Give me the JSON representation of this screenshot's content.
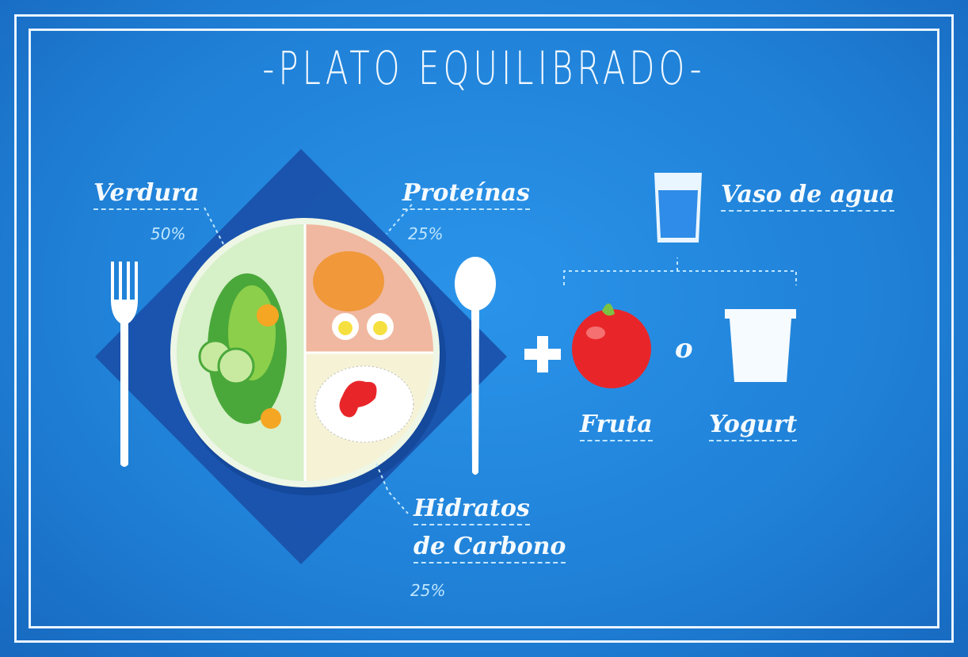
{
  "title": "-PLATO EQUILIBRADO-",
  "plate": {
    "sections": [
      {
        "name": "Verdura",
        "percent": "50%"
      },
      {
        "name": "Proteínas",
        "percent": "25%"
      },
      {
        "name": "Hidratos de Carbono",
        "line1": "Hidratos",
        "line2": "de Carbono",
        "percent": "25%"
      }
    ]
  },
  "extras": {
    "water": "Vaso de agua",
    "fruit": "Fruta",
    "or": "o",
    "yogurt": "Yogurt",
    "plus": "+"
  },
  "colors": {
    "background": "#1f86dc",
    "napkin": "#1a4fa8",
    "verdura": "#d6f0c8",
    "proteinas": "#f0b8a0",
    "hidratos": "#f6f2d6",
    "apple": "#e8262a"
  }
}
